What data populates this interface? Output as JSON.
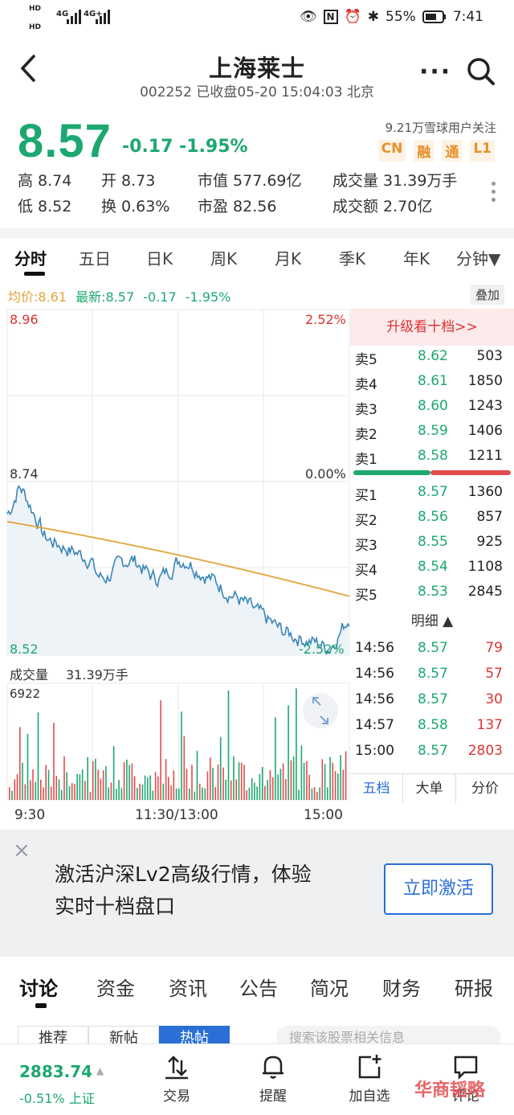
{
  "status": {
    "hd1": "HD",
    "hd2": "HD",
    "net1": "4G",
    "net2": "4G+",
    "battery": "55%",
    "time": "7:41"
  },
  "header": {
    "title": "上海莱士",
    "subtitle": "002252 已收盘05-20 15:04:03 北京"
  },
  "quote": {
    "price": "8.57",
    "change": "-0.17",
    "change_pct": "-1.95%",
    "followers": "9.21万雪球用户关注",
    "badges": [
      "CN",
      "融",
      "通",
      "L1"
    ],
    "stats": {
      "high": "高 8.74",
      "open": "开 8.73",
      "mktcap": "市值 577.69亿",
      "volume": "成交量 31.39万手",
      "low": "低 8.52",
      "turnover": "换 0.63%",
      "pe": "市盈 82.56",
      "amount": "成交额 2.70亿"
    }
  },
  "period_tabs": [
    "分时",
    "五日",
    "日K",
    "周K",
    "月K",
    "季K",
    "年K",
    "分钟▼"
  ],
  "chart_info": {
    "avg": "均价:8.61",
    "latest": "最新:8.57",
    "chg": "-0.17",
    "pct": "-1.95%",
    "overlay_btn": "叠加"
  },
  "axis": {
    "top_price": "8.96",
    "top_pct": "2.52%",
    "mid_price": "8.74",
    "mid_pct": "0.00%",
    "bot_price": "8.52",
    "bot_pct": "-2.52%",
    "vol_label": "成交量",
    "vol_value": "31.39万手",
    "vol_max": "6922",
    "times": [
      "9:30",
      "11:30/13:00",
      "15:00"
    ]
  },
  "orderbook": {
    "upgrade": "升级看十档>>",
    "asks": [
      {
        "name": "卖5",
        "price": "8.62",
        "vol": "503"
      },
      {
        "name": "卖4",
        "price": "8.61",
        "vol": "1850"
      },
      {
        "name": "卖3",
        "price": "8.60",
        "vol": "1243"
      },
      {
        "name": "卖2",
        "price": "8.59",
        "vol": "1406"
      },
      {
        "name": "卖1",
        "price": "8.58",
        "vol": "1211"
      }
    ],
    "bids": [
      {
        "name": "买1",
        "price": "8.57",
        "vol": "1360"
      },
      {
        "name": "买2",
        "price": "8.56",
        "vol": "857"
      },
      {
        "name": "买3",
        "price": "8.55",
        "vol": "925"
      },
      {
        "name": "买4",
        "price": "8.54",
        "vol": "1108"
      },
      {
        "name": "买5",
        "price": "8.53",
        "vol": "2845"
      }
    ],
    "detail_title": "明细 ▲",
    "trades": [
      {
        "time": "14:56",
        "price": "8.57",
        "vol": "79"
      },
      {
        "time": "14:56",
        "price": "8.57",
        "vol": "57"
      },
      {
        "time": "14:56",
        "price": "8.57",
        "vol": "30"
      },
      {
        "time": "14:57",
        "price": "8.58",
        "vol": "137"
      },
      {
        "time": "15:00",
        "price": "8.57",
        "vol": "2803"
      }
    ],
    "tabs": [
      "五档",
      "大单",
      "分价"
    ]
  },
  "banner": {
    "close": "×",
    "text1": "激活沪深Lv2高级行情，体验",
    "text2": "实时十档盘口",
    "button": "立即激活"
  },
  "bottom_tabs": [
    "讨论",
    "资金",
    "资讯",
    "公告",
    "简况",
    "财务",
    "研报"
  ],
  "sub_tabs": [
    "推荐",
    "新帖",
    "热帖"
  ],
  "search_placeholder": "搜索该股票相关信息",
  "bottom_nav": {
    "index_value": "2883.74",
    "index_change": "-0.51% 上证",
    "items": [
      "交易",
      "提醒",
      "加自选",
      "评论"
    ]
  },
  "watermark": "华商韬略",
  "colors": {
    "up": "#d33",
    "down": "#1ca870",
    "accent": "#2a6fd6",
    "avg_line": "#e2a43a"
  }
}
